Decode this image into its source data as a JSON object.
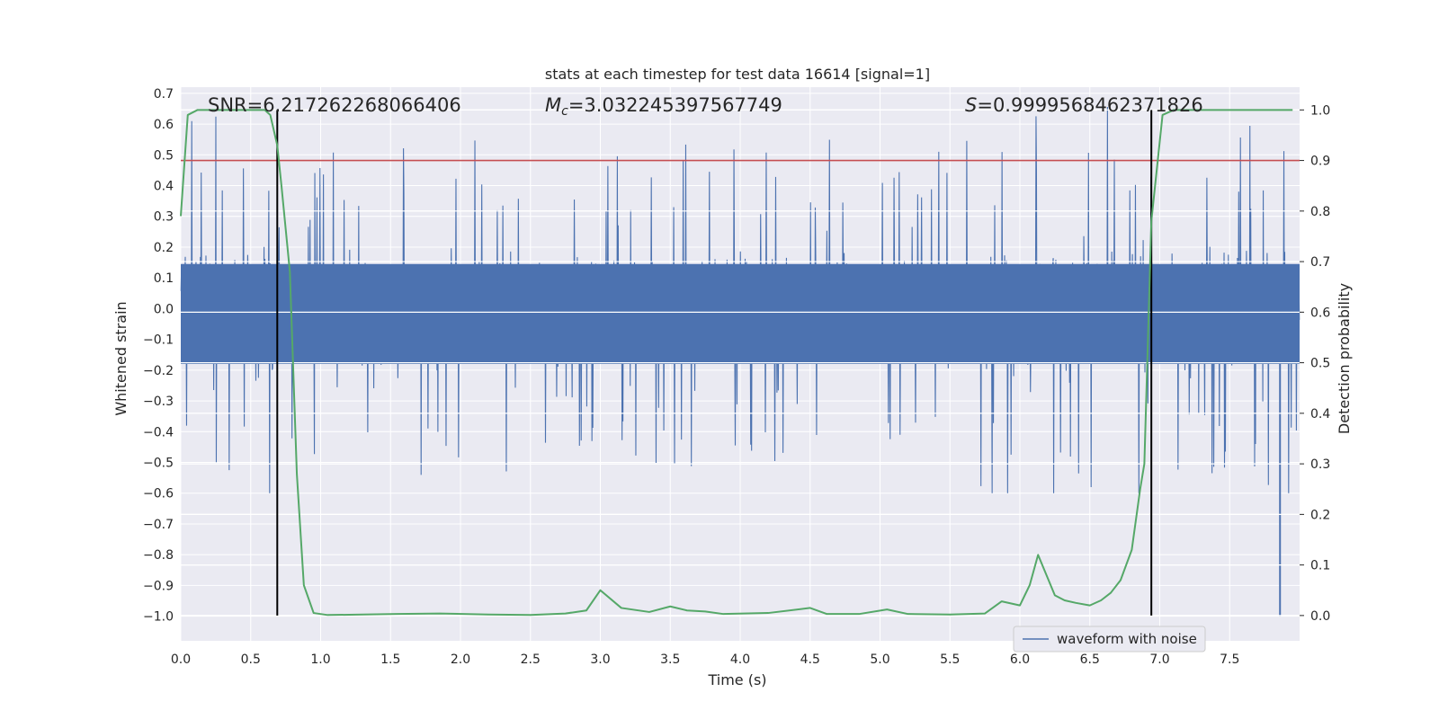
{
  "chart_data": {
    "type": "line",
    "title": "stats at each timestep for test data 16614 [signal=1]",
    "xlabel": "Time (s)",
    "ylabel_left": "Whitened strain",
    "ylabel_right": "Detection probability",
    "xlim": [
      0,
      8
    ],
    "ylim_left": [
      -1.08,
      0.72
    ],
    "ylim_right": [
      -0.05,
      1.045
    ],
    "x_ticks": [
      "0.0",
      "0.5",
      "1.0",
      "1.5",
      "2.0",
      "2.5",
      "3.0",
      "3.5",
      "4.0",
      "4.5",
      "5.0",
      "5.5",
      "6.0",
      "6.5",
      "7.0",
      "7.5"
    ],
    "y_left_ticks": [
      "0.7",
      "0.6",
      "0.5",
      "0.4",
      "0.3",
      "0.2",
      "0.1",
      "0.0",
      "−0.1",
      "−0.2",
      "−0.3",
      "−0.4",
      "−0.5",
      "−0.6",
      "−0.7",
      "−0.8",
      "−0.9",
      "−1.0"
    ],
    "y_right_ticks": [
      "1.0",
      "0.9",
      "0.8",
      "0.7",
      "0.6",
      "0.5",
      "0.4",
      "0.3",
      "0.2",
      "0.1",
      "0.0"
    ],
    "grid": true,
    "legend": {
      "entries": [
        "waveform with noise"
      ],
      "location": "lower-right"
    },
    "annotations": {
      "snr": "SNR=6.217262268066406",
      "mc_symbol": "M",
      "mc_sub": "c",
      "mc_value": "=3.032245397567749",
      "s_symbol": "S",
      "s_value": "=0.9999568462371826"
    },
    "threshold_probability": 0.9,
    "vertical_markers": [
      0.69,
      6.94
    ],
    "strain_series": {
      "name": "waveform with noise",
      "envelope_mode": "random_noise",
      "dense_band": [
        -0.18,
        0.145
      ],
      "typical_positive_peak": 0.32,
      "typical_negative_peak": -0.38,
      "extreme_min": {
        "x": 7.86,
        "y": -1.0
      },
      "signal_bursts": [
        [
          0.0,
          0.7
        ],
        [
          5.6,
          7.95
        ]
      ]
    },
    "probability_series": {
      "name": "detection probability",
      "x": [
        0.0,
        0.05,
        0.12,
        0.2,
        0.4,
        0.6,
        0.64,
        0.69,
        0.72,
        0.78,
        0.83,
        0.88,
        0.95,
        1.05,
        1.3,
        1.55,
        1.85,
        2.2,
        2.5,
        2.75,
        2.9,
        3.0,
        3.15,
        3.35,
        3.5,
        3.62,
        3.75,
        3.88,
        4.2,
        4.5,
        4.62,
        4.85,
        5.05,
        5.2,
        5.5,
        5.75,
        5.87,
        6.0,
        6.07,
        6.13,
        6.25,
        6.32,
        6.4,
        6.5,
        6.58,
        6.65,
        6.72,
        6.8,
        6.86,
        6.89,
        6.94,
        7.02,
        7.1,
        7.5,
        7.8,
        7.95
      ],
      "y": [
        0.79,
        0.99,
        1.0,
        1.0,
        1.0,
        1.0,
        0.99,
        0.93,
        0.85,
        0.68,
        0.28,
        0.06,
        0.005,
        0.001,
        0.002,
        0.003,
        0.004,
        0.002,
        0.001,
        0.004,
        0.01,
        0.05,
        0.015,
        0.007,
        0.018,
        0.01,
        0.008,
        0.003,
        0.005,
        0.015,
        0.003,
        0.003,
        0.012,
        0.003,
        0.002,
        0.004,
        0.028,
        0.02,
        0.06,
        0.12,
        0.04,
        0.03,
        0.025,
        0.02,
        0.03,
        0.045,
        0.07,
        0.13,
        0.25,
        0.3,
        0.78,
        0.99,
        1.0,
        1.0,
        1.0,
        1.0
      ]
    },
    "colors": {
      "strain": "#4c72b0",
      "probability": "#55a868",
      "threshold": "#c44e52",
      "markers": "#000000",
      "plot_background": "#eaeaf2",
      "grid": "#ffffff"
    }
  }
}
